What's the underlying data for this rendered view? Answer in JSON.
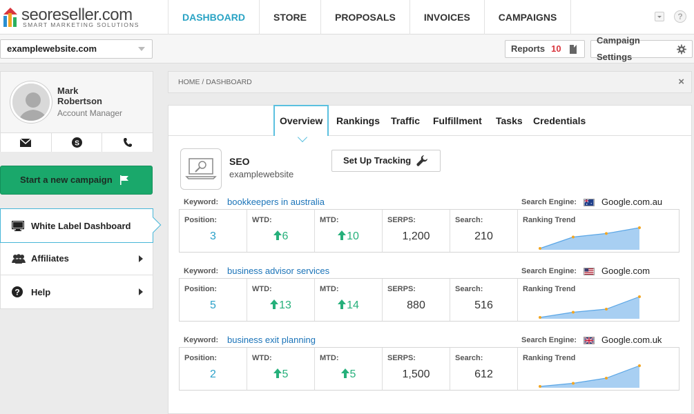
{
  "brand": {
    "name": "seoreseller.com",
    "tagline": "SMART MARKETING SOLUTIONS"
  },
  "nav": [
    {
      "label": "DASHBOARD",
      "active": true
    },
    {
      "label": "STORE"
    },
    {
      "label": "PROPOSALS"
    },
    {
      "label": "INVOICES"
    },
    {
      "label": "CAMPAIGNS"
    }
  ],
  "help_label": "?",
  "site_select": {
    "value": "examplewebsite.com"
  },
  "reports": {
    "label": "Reports",
    "count": "10"
  },
  "campaign_settings": {
    "label": "Campaign Settings"
  },
  "profile": {
    "first_name": "Mark",
    "last_name": "Robertson",
    "role": "Account Manager"
  },
  "start_campaign": {
    "label": "Start a new campaign"
  },
  "menu": [
    {
      "label": "White Label Dashboard",
      "icon": "monitor-icon",
      "active": true
    },
    {
      "label": "Affiliates",
      "icon": "users-icon"
    },
    {
      "label": "Help",
      "icon": "question-icon"
    }
  ],
  "breadcrumb": "HOME / DASHBOARD",
  "close_label": "×",
  "tabs": [
    {
      "label": "Overview",
      "active": true
    },
    {
      "label": "Rankings"
    },
    {
      "label": "Traffic"
    },
    {
      "label": "Fulfillment"
    },
    {
      "label": "Tasks"
    },
    {
      "label": "Credentials"
    }
  ],
  "seo": {
    "title": "SEO",
    "site": "examplewebsite",
    "setup_label": "Set Up Tracking"
  },
  "labels": {
    "keyword": "Keyword:",
    "search_engine": "Search Engine:",
    "position": "Position:",
    "wtd": "WTD:",
    "mtd": "MTD:",
    "serps": "SERPS:",
    "search": "Search:",
    "ranking_trend": "Ranking Trend"
  },
  "keywords": [
    {
      "keyword": "bookkeepers in australia",
      "engine": "Google.com.au",
      "flag": "australia-flag-icon",
      "position": "3",
      "wtd": "6",
      "mtd": "10",
      "serps": "1,200",
      "search": "210",
      "trend": [
        0.0,
        0.55,
        0.72,
        1.0
      ]
    },
    {
      "keyword": "business advisor services",
      "engine": "Google.com",
      "flag": "usa-flag-icon",
      "position": "5",
      "wtd": "13",
      "mtd": "14",
      "serps": "880",
      "search": "516",
      "trend": [
        0.0,
        0.25,
        0.4,
        1.0
      ]
    },
    {
      "keyword": "business exit planning",
      "engine": "Google.com.uk",
      "flag": "uk-flag-icon",
      "position": "2",
      "wtd": "5",
      "mtd": "5",
      "serps": "1,500",
      "search": "612",
      "trend": [
        0.0,
        0.15,
        0.4,
        1.0
      ]
    }
  ]
}
